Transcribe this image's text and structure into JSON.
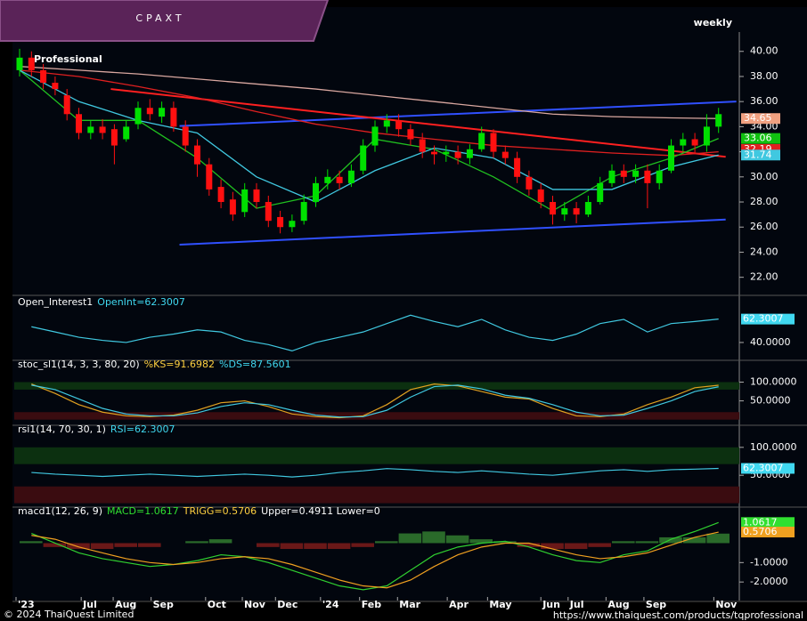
{
  "chart_data": {
    "type": "candlestick",
    "title": "CPAXT",
    "subtitle": "weekly",
    "logo": "TQ",
    "logo_sub": "Professional",
    "up_color": "#00e000",
    "down_color": "#ff1010",
    "open": [
      38.5,
      39.5,
      38.5,
      37.5,
      36.5,
      35.0,
      33.5,
      34.0,
      33.8,
      33.0,
      34.2,
      35.5,
      34.8,
      35.5,
      34.0,
      32.5,
      31.0,
      29.2,
      28.2,
      27.2,
      29.0,
      28.0,
      26.8,
      26.0,
      26.5,
      28.0,
      29.5,
      30.0,
      29.5,
      30.5,
      32.5,
      34.0,
      34.5,
      33.8,
      33.0,
      32.0,
      31.8,
      32.0,
      31.5,
      32.2,
      33.5,
      32.0,
      31.5,
      30.0,
      29.0,
      28.0,
      27.0,
      27.5,
      27.0,
      28.0,
      29.5,
      30.5,
      30.0,
      30.5,
      29.5,
      30.5,
      32.5,
      33.0,
      32.5,
      34.0
    ],
    "high": [
      40.2,
      40.0,
      39.0,
      38.0,
      37.0,
      35.5,
      34.5,
      34.6,
      34.2,
      34.5,
      36.0,
      36.2,
      36.0,
      36.0,
      34.5,
      33.0,
      31.5,
      29.8,
      28.8,
      29.5,
      29.5,
      28.5,
      27.3,
      27.0,
      28.6,
      30.0,
      30.6,
      30.5,
      31.0,
      33.0,
      34.5,
      35.0,
      35.0,
      34.2,
      33.5,
      32.5,
      32.5,
      32.5,
      32.6,
      34.0,
      33.8,
      32.5,
      32.0,
      30.5,
      29.5,
      28.5,
      28.0,
      28.0,
      28.5,
      30.0,
      31.0,
      31.0,
      31.0,
      31.0,
      31.0,
      33.0,
      33.5,
      33.5,
      35.0,
      35.5
    ],
    "low": [
      38.0,
      38.0,
      37.0,
      36.5,
      34.5,
      33.0,
      33.0,
      33.0,
      31.0,
      32.8,
      33.8,
      34.5,
      34.3,
      33.6,
      32.0,
      30.0,
      28.5,
      27.5,
      26.5,
      26.8,
      27.5,
      26.0,
      25.5,
      25.6,
      26.2,
      27.6,
      29.0,
      29.0,
      29.2,
      30.2,
      32.0,
      33.5,
      33.2,
      32.5,
      31.5,
      31.0,
      31.2,
      31.0,
      31.0,
      32.0,
      31.5,
      31.0,
      29.5,
      28.5,
      27.5,
      26.2,
      26.5,
      26.3,
      26.8,
      27.8,
      29.2,
      29.5,
      29.5,
      27.5,
      29.0,
      30.3,
      32.0,
      31.8,
      32.0,
      33.5
    ],
    "close": [
      39.5,
      38.5,
      37.5,
      37.0,
      35.0,
      33.5,
      34.0,
      33.5,
      32.5,
      34.0,
      35.5,
      35.0,
      35.5,
      34.0,
      32.5,
      31.0,
      29.0,
      28.0,
      27.0,
      29.0,
      28.0,
      26.5,
      26.0,
      26.5,
      28.0,
      29.5,
      30.0,
      29.5,
      30.5,
      32.5,
      34.0,
      34.5,
      33.8,
      33.0,
      32.0,
      31.8,
      32.0,
      31.5,
      32.2,
      33.5,
      32.0,
      31.5,
      30.0,
      29.0,
      28.0,
      27.0,
      27.5,
      27.0,
      28.0,
      29.5,
      30.5,
      30.0,
      30.5,
      29.5,
      30.5,
      32.5,
      33.0,
      32.5,
      34.0,
      35.0
    ],
    "ylim": [
      20.7,
      41.4
    ],
    "yticks": [
      {
        "value": 22,
        "label": "22.00"
      },
      {
        "value": 24,
        "label": "24.00"
      },
      {
        "value": 26,
        "label": "26.00"
      },
      {
        "value": 28,
        "label": "28.00"
      },
      {
        "value": 30,
        "label": "30.00"
      },
      {
        "value": 32,
        "label": "32.00"
      },
      {
        "value": 34,
        "label": "34.00"
      },
      {
        "value": 36,
        "label": "36.00"
      },
      {
        "value": 38,
        "label": "38.00"
      },
      {
        "value": 40,
        "label": "40.00"
      }
    ],
    "moving_averages": [
      {
        "color": "#d9a7a0",
        "x": [
          0,
          5,
          10,
          15,
          20,
          25,
          30,
          35,
          40,
          45,
          50,
          55,
          59
        ],
        "values": [
          38.8,
          38.5,
          38.2,
          37.8,
          37.4,
          37.0,
          36.5,
          36.0,
          35.5,
          35.0,
          34.8,
          34.7,
          34.65
        ]
      },
      {
        "color": "#e02020",
        "x": [
          0,
          5,
          10,
          15,
          20,
          25,
          30,
          35,
          40,
          45,
          50,
          55,
          59
        ],
        "values": [
          38.5,
          38.0,
          37.2,
          36.3,
          35.2,
          34.2,
          33.5,
          33.0,
          32.5,
          32.2,
          31.9,
          31.7,
          32.0
        ]
      },
      {
        "color": "#20c020",
        "x": [
          0,
          5,
          10,
          15,
          20,
          25,
          30,
          35,
          40,
          45,
          50,
          55,
          59
        ],
        "values": [
          38.5,
          34.5,
          34.5,
          31.5,
          27.5,
          28.5,
          33.0,
          32.2,
          30.0,
          27.3,
          30.0,
          31.5,
          33.06
        ]
      },
      {
        "color": "#40c8e0",
        "x": [
          0,
          5,
          10,
          15,
          20,
          25,
          30,
          35,
          40,
          45,
          50,
          55,
          59
        ],
        "values": [
          38.5,
          36.0,
          34.5,
          33.5,
          30.0,
          28.0,
          30.5,
          32.3,
          31.5,
          29.0,
          29.0,
          30.8,
          31.74
        ]
      }
    ],
    "trendlines": [
      {
        "color": "#3050ff",
        "x": [
          13.5,
          60.5
        ],
        "values": [
          34.05,
          36.0
        ]
      },
      {
        "color": "#3050ff",
        "x": [
          13.5,
          59.6
        ],
        "values": [
          24.6,
          26.6
        ]
      },
      {
        "color": "#ff2020",
        "x": [
          7.7,
          59.6
        ],
        "values": [
          37.0,
          31.6
        ]
      }
    ],
    "price_tags": [
      {
        "value": 34.65,
        "color": "#f0a080",
        "text_color": "#000"
      },
      {
        "value": 33.06,
        "color": "#10c010",
        "text_color": "#000"
      },
      {
        "value": 32.19,
        "color": "#e02020",
        "text_color": "#fff"
      },
      {
        "value": 31.74,
        "color": "#40c8e0",
        "text_color": "#000"
      }
    ],
    "x_labels": [
      {
        "value": -0.3,
        "label": "'23"
      },
      {
        "value": 5.2,
        "label": "Jul"
      },
      {
        "value": 7.9,
        "label": "Aug"
      },
      {
        "value": 11.1,
        "label": "Sep"
      },
      {
        "value": 15.7,
        "label": "Oct"
      },
      {
        "value": 18.8,
        "label": "Nov"
      },
      {
        "value": 21.6,
        "label": "Dec"
      },
      {
        "value": 25.4,
        "label": "'24"
      },
      {
        "value": 28.7,
        "label": "Feb"
      },
      {
        "value": 31.9,
        "label": "Mar"
      },
      {
        "value": 36.1,
        "label": "Apr"
      },
      {
        "value": 39.5,
        "label": "May"
      },
      {
        "value": 44.0,
        "label": "Jun"
      },
      {
        "value": 46.3,
        "label": "Jul"
      },
      {
        "value": 49.5,
        "label": "Aug"
      },
      {
        "value": 52.7,
        "label": "Sep"
      },
      {
        "value": 58.6,
        "label": "Nov"
      }
    ],
    "panels": [
      {
        "title": [
          {
            "text": "Open_Interest1",
            "color": "#ffffff"
          },
          {
            "text": "OpenInt=62.3007",
            "color": "#40d8f0"
          }
        ],
        "ylim": [
          23,
          73
        ],
        "yticks": [
          {
            "value": 40,
            "label": "40.0000"
          }
        ],
        "series": [
          {
            "type": "line",
            "color": "#40c8e0",
            "x": [
              1,
              3,
              5,
              7,
              9,
              11,
              13,
              15,
              17,
              19,
              21,
              23,
              25,
              27,
              29,
              31,
              33,
              35,
              37,
              39,
              41,
              43,
              45,
              47,
              49,
              51,
              53,
              55,
              57,
              59
            ],
            "values": [
              55,
              50,
              45,
              42,
              40,
              45,
              48,
              52,
              50,
              42,
              38,
              32,
              40,
              45,
              50,
              58,
              66,
              60,
              55,
              62,
              52,
              45,
              42,
              48,
              58,
              62,
              50,
              58,
              60,
              62.3
            ]
          }
        ],
        "tags": [
          {
            "value": 62.3007,
            "color": "#40d8f0"
          }
        ]
      },
      {
        "title": [
          {
            "text": "stoc_sl1(14, 3, 3, 80, 20)",
            "color": "#ffffff"
          },
          {
            "text": "%KS=91.6982",
            "color": "#ffd040"
          },
          {
            "text": "%DS=87.5601",
            "color": "#40d8f0"
          }
        ],
        "ylim": [
          -15,
          132
        ],
        "yticks": [
          {
            "value": 50,
            "label": "50.0000"
          },
          {
            "value": 100,
            "label": "100.0000"
          }
        ],
        "zones": [
          {
            "from": 80,
            "to": 100,
            "color": "#0c3010"
          },
          {
            "from": 0,
            "to": 20,
            "color": "#3a0c10"
          }
        ],
        "series": [
          {
            "type": "line",
            "color": "#e0a020",
            "x": [
              1,
              3,
              5,
              7,
              9,
              11,
              13,
              15,
              17,
              19,
              21,
              23,
              25,
              27,
              29,
              31,
              33,
              35,
              37,
              39,
              41,
              43,
              45,
              47,
              49,
              51,
              53,
              55,
              57,
              59
            ],
            "values": [
              95,
              70,
              40,
              20,
              10,
              8,
              12,
              25,
              45,
              50,
              35,
              15,
              8,
              5,
              10,
              40,
              80,
              95,
              90,
              75,
              60,
              55,
              30,
              10,
              8,
              15,
              40,
              60,
              85,
              91.7
            ]
          },
          {
            "type": "line",
            "color": "#40c8e0",
            "x": [
              1,
              3,
              5,
              7,
              9,
              11,
              13,
              15,
              17,
              19,
              21,
              23,
              25,
              27,
              29,
              31,
              33,
              35,
              37,
              39,
              41,
              43,
              45,
              47,
              49,
              51,
              53,
              55,
              57,
              59
            ],
            "values": [
              92,
              80,
              55,
              30,
              15,
              10,
              10,
              18,
              35,
              45,
              40,
              25,
              12,
              7,
              8,
              25,
              60,
              88,
              92,
              82,
              65,
              57,
              40,
              20,
              10,
              12,
              30,
              50,
              75,
              87.56
            ]
          }
        ]
      },
      {
        "title": [
          {
            "text": "rsi1(14, 70, 30, 1)",
            "color": "#ffffff"
          },
          {
            "text": "RSI=62.3007",
            "color": "#40d8f0"
          }
        ],
        "ylim": [
          -7,
          122
        ],
        "yticks": [
          {
            "value": 50,
            "label": "50.0000"
          },
          {
            "value": 100,
            "label": "100.0000"
          }
        ],
        "zones": [
          {
            "from": 70,
            "to": 100,
            "color": "#0c3010"
          },
          {
            "from": 0,
            "to": 30,
            "color": "#3a0c10"
          }
        ],
        "series": [
          {
            "type": "line",
            "color": "#40c8e0",
            "x": [
              1,
              3,
              5,
              7,
              9,
              11,
              13,
              15,
              17,
              19,
              21,
              23,
              25,
              27,
              29,
              31,
              33,
              35,
              37,
              39,
              41,
              43,
              45,
              47,
              49,
              51,
              53,
              55,
              57,
              59
            ],
            "values": [
              55,
              52,
              50,
              48,
              50,
              52,
              50,
              48,
              50,
              52,
              50,
              47,
              50,
              55,
              58,
              62,
              60,
              57,
              55,
              58,
              55,
              52,
              50,
              54,
              58,
              60,
              57,
              60,
              61,
              62.3
            ]
          }
        ],
        "tags": [
          {
            "value": 62.3007,
            "color": "#40d8f0"
          }
        ]
      },
      {
        "title": [
          {
            "text": "macd1(12, 26, 9)",
            "color": "#ffffff"
          },
          {
            "text": "MACD=1.0617",
            "color": "#30e030"
          },
          {
            "text": "TRIGG=0.5706",
            "color": "#ffd040"
          },
          {
            "text": "Upper=0.4911 Lower=0",
            "color": "#ffffff"
          }
        ],
        "ylim": [
          -3.0,
          1.35
        ],
        "yticks": [
          {
            "value": -2,
            "label": "-2.0000"
          },
          {
            "value": -1,
            "label": "-1.0000"
          }
        ],
        "series": [
          {
            "type": "histogram",
            "pos_color": "#2a6a2a",
            "neg_color": "#6a1818",
            "x": [
              1,
              3,
              5,
              7,
              9,
              11,
              13,
              15,
              17,
              19,
              21,
              23,
              25,
              27,
              29,
              31,
              33,
              35,
              37,
              39,
              41,
              43,
              45,
              47,
              49,
              51,
              53,
              55,
              57,
              59
            ],
            "values": [
              0.1,
              -0.2,
              -0.3,
              -0.3,
              -0.2,
              -0.2,
              0,
              0.1,
              0.2,
              0,
              -0.2,
              -0.3,
              -0.3,
              -0.3,
              -0.2,
              0.1,
              0.5,
              0.6,
              0.4,
              0.2,
              0.1,
              -0.2,
              -0.3,
              -0.3,
              -0.2,
              0.1,
              0.1,
              0.3,
              0.3,
              0.49
            ]
          },
          {
            "type": "line",
            "color": "#30d030",
            "x": [
              1,
              3,
              5,
              7,
              9,
              11,
              13,
              15,
              17,
              19,
              21,
              23,
              25,
              27,
              29,
              31,
              33,
              35,
              37,
              39,
              41,
              43,
              45,
              47,
              49,
              51,
              53,
              55,
              57,
              59
            ],
            "values": [
              0.5,
              0,
              -0.5,
              -0.8,
              -1.0,
              -1.2,
              -1.1,
              -0.9,
              -0.6,
              -0.7,
              -1.0,
              -1.4,
              -1.8,
              -2.2,
              -2.4,
              -2.2,
              -1.4,
              -0.6,
              -0.2,
              0,
              0.1,
              -0.2,
              -0.6,
              -0.9,
              -1.0,
              -0.6,
              -0.4,
              0.2,
              0.6,
              1.06
            ]
          },
          {
            "type": "line",
            "color": "#f0a020",
            "x": [
              1,
              3,
              5,
              7,
              9,
              11,
              13,
              15,
              17,
              19,
              21,
              23,
              25,
              27,
              29,
              31,
              33,
              35,
              37,
              39,
              41,
              43,
              45,
              47,
              49,
              51,
              53,
              55,
              57,
              59
            ],
            "values": [
              0.4,
              0.2,
              -0.2,
              -0.5,
              -0.8,
              -1.0,
              -1.1,
              -1.0,
              -0.8,
              -0.7,
              -0.8,
              -1.1,
              -1.5,
              -1.9,
              -2.2,
              -2.3,
              -1.9,
              -1.2,
              -0.6,
              -0.2,
              0,
              0,
              -0.3,
              -0.6,
              -0.8,
              -0.7,
              -0.5,
              -0.1,
              0.3,
              0.57
            ]
          }
        ],
        "tags": [
          {
            "value": 1.0617,
            "color": "#30e030"
          },
          {
            "value": 0.5706,
            "color": "#f0a020"
          }
        ]
      }
    ],
    "footer_left": "© 2024 ThaiQuest Limited",
    "footer_right": "https://www.thaiquest.com/products/tqprofessional"
  }
}
